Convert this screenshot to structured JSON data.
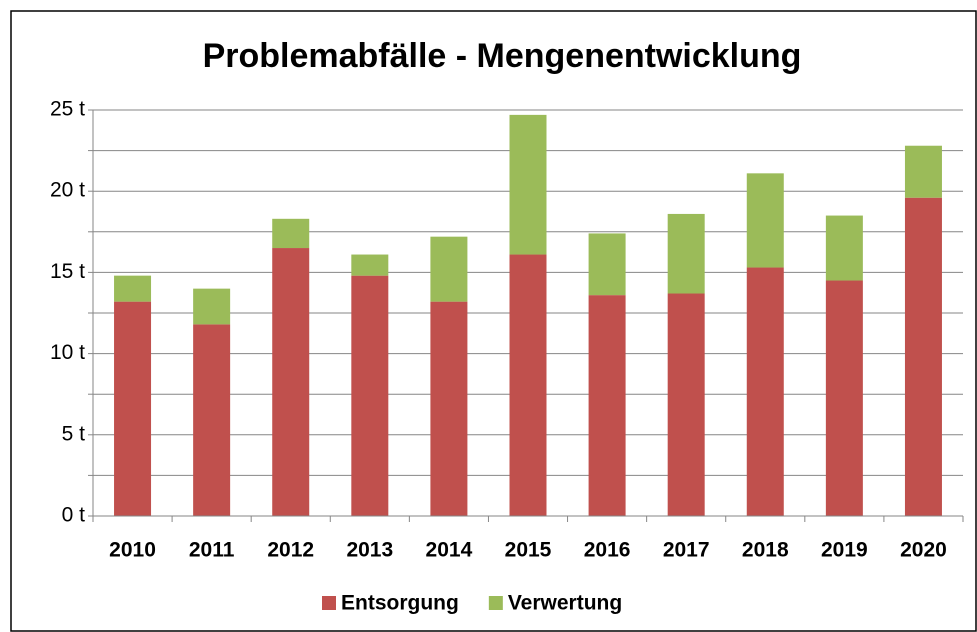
{
  "chart_data": {
    "type": "stacked-bar",
    "title": "Problemabfälle - Mengenentwicklung",
    "categories": [
      "2010",
      "2011",
      "2012",
      "2013",
      "2014",
      "2015",
      "2016",
      "2017",
      "2018",
      "2019",
      "2020"
    ],
    "series": [
      {
        "name": "Entsorgung",
        "color": "#c0504d",
        "values": [
          13.2,
          11.8,
          16.5,
          14.8,
          13.2,
          16.1,
          13.6,
          13.7,
          15.3,
          14.5,
          19.6
        ]
      },
      {
        "name": "Verwertung",
        "color": "#9bbb59",
        "values": [
          1.6,
          2.2,
          1.8,
          1.3,
          4.0,
          8.6,
          3.8,
          4.9,
          5.8,
          4.0,
          3.2
        ]
      }
    ],
    "ylim": [
      0,
      25
    ],
    "yticks": [
      {
        "value": 0,
        "label": "0 t"
      },
      {
        "value": 5,
        "label": "5 t"
      },
      {
        "value": 10,
        "label": "10 t"
      },
      {
        "value": 15,
        "label": "15 t"
      },
      {
        "value": 20,
        "label": "20 t"
      },
      {
        "value": 25,
        "label": "25 t"
      }
    ],
    "minor_yticks": [
      2.5,
      7.5,
      12.5,
      17.5,
      22.5
    ],
    "grid": true,
    "legend": "bottom"
  }
}
